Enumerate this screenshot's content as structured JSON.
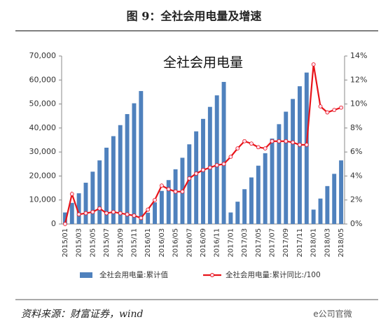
{
  "header": "图 9：全社会用电量及增速",
  "source": "资料来源：财富证券，wind",
  "watermark": "e公司官微",
  "chart_data": {
    "type": "bar-line",
    "title": "全社会用电量",
    "categories": [
      "2015/01",
      null,
      "2015/03",
      null,
      "2015/05",
      null,
      "2015/07",
      null,
      "2015/09",
      null,
      "2015/11",
      null,
      "2016/01",
      null,
      "2016/03",
      null,
      "2016/05",
      null,
      "2016/07",
      null,
      "2016/09",
      null,
      "2016/11",
      null,
      "2017/01",
      null,
      "2017/03",
      null,
      "2017/05",
      null,
      "2017/07",
      null,
      "2017/09",
      null,
      "2017/11",
      null,
      "2018/01",
      null,
      "2018/03",
      null,
      "2018/05"
    ],
    "series": [
      {
        "name": "全社会用电量:累计值",
        "color": "#4f81bd",
        "axis": "y",
        "values": [
          4800,
          8800,
          12800,
          17200,
          21800,
          26500,
          31800,
          36600,
          41200,
          45800,
          50300,
          55400,
          4700,
          9000,
          13800,
          18300,
          22800,
          27600,
          33200,
          38600,
          43800,
          48800,
          53600,
          59200,
          4800,
          9300,
          14500,
          19400,
          24300,
          29500,
          35600,
          41600,
          46800,
          52100,
          57400,
          63100,
          6000,
          10600,
          15800,
          20900,
          26500
        ]
      },
      {
        "name": "全社会用电量:累计同比:/100",
        "color": "#e8141a",
        "axis": "y2",
        "values": [
          0.0,
          2.5,
          0.8,
          0.9,
          1.0,
          1.3,
          0.9,
          1.0,
          0.9,
          0.8,
          0.7,
          0.5,
          1.2,
          2.0,
          3.2,
          2.9,
          2.7,
          2.7,
          3.8,
          4.2,
          4.5,
          4.7,
          4.9,
          5.0,
          5.6,
          6.3,
          6.9,
          6.7,
          6.4,
          6.3,
          6.9,
          6.9,
          6.9,
          6.8,
          6.6,
          6.6,
          13.3,
          9.8,
          9.3,
          9.5,
          9.7
        ]
      }
    ],
    "ylim": [
      0,
      70000
    ],
    "yticks": [
      0,
      {
        "value": 10000,
        "label": "10,000"
      },
      {
        "value": 20000,
        "label": "20,000"
      },
      {
        "value": 30000,
        "label": "30,000"
      },
      {
        "value": 40000,
        "label": "40,000"
      },
      {
        "value": 50000,
        "label": "50,000"
      },
      {
        "value": 60000,
        "label": "60,000"
      },
      {
        "value": 70000,
        "label": "70,000"
      }
    ],
    "y2lim": [
      0,
      14
    ],
    "y2ticks": [
      {
        "value": 0,
        "label": "0%"
      },
      {
        "value": 2,
        "label": "2%"
      },
      {
        "value": 4,
        "label": "4%"
      },
      {
        "value": 6,
        "label": "6%"
      },
      {
        "value": 8,
        "label": "8%"
      },
      {
        "value": 10,
        "label": "10%"
      },
      {
        "value": 12,
        "label": "12%"
      },
      {
        "value": 14,
        "label": "14%"
      }
    ],
    "legend": "bottom"
  }
}
